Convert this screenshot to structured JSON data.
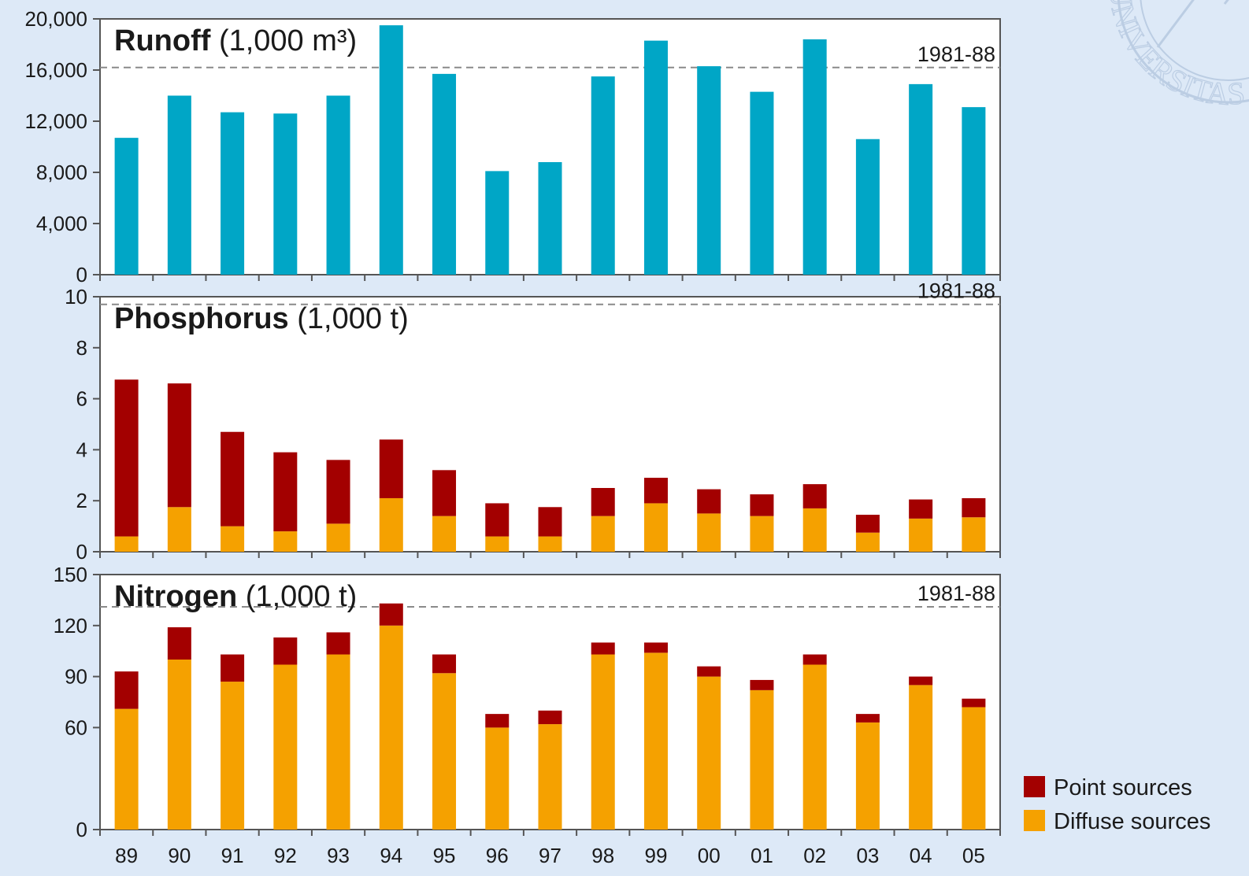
{
  "chart_data": [
    {
      "type": "bar",
      "title_bold": "Runoff",
      "title_rest": " (1,000 m³)",
      "categories": [
        "89",
        "90",
        "91",
        "92",
        "93",
        "94",
        "95",
        "96",
        "97",
        "98",
        "99",
        "00",
        "01",
        "02",
        "03",
        "04",
        "05"
      ],
      "values": [
        10700,
        14000,
        12700,
        12600,
        14000,
        19500,
        15700,
        8100,
        8800,
        15500,
        18300,
        16300,
        14300,
        18400,
        10600,
        14900,
        13100
      ],
      "ylim": [
        0,
        20000
      ],
      "yticks": [
        0,
        4000,
        8000,
        12000,
        16000,
        20000
      ],
      "ytick_labels": [
        "0",
        "4,000",
        "8,000",
        "12,000",
        "16,000",
        "20,000"
      ],
      "reference_line": {
        "label": "1981-88",
        "value": 16200
      },
      "color": "#00a6c6"
    },
    {
      "type": "bar",
      "stacked": true,
      "title_bold": "Phosphorus",
      "title_rest": " (1,000 t)",
      "categories": [
        "89",
        "90",
        "91",
        "92",
        "93",
        "94",
        "95",
        "96",
        "97",
        "98",
        "99",
        "00",
        "01",
        "02",
        "03",
        "04",
        "05"
      ],
      "series": [
        {
          "name": "Diffuse sources",
          "color": "#f5a100",
          "values": [
            0.6,
            1.75,
            1.0,
            0.8,
            1.1,
            2.1,
            1.4,
            0.6,
            0.6,
            1.4,
            1.9,
            1.5,
            1.4,
            1.7,
            0.75,
            1.3,
            1.35
          ]
        },
        {
          "name": "Point sources",
          "color": "#a30000",
          "values": [
            6.15,
            4.85,
            3.7,
            3.1,
            2.5,
            2.3,
            1.8,
            1.3,
            1.15,
            1.1,
            1.0,
            0.95,
            0.85,
            0.95,
            0.7,
            0.75,
            0.75
          ]
        }
      ],
      "ylim": [
        0,
        10
      ],
      "yticks": [
        0,
        2,
        4,
        6,
        8,
        10
      ],
      "ytick_labels": [
        "0",
        "2",
        "4",
        "6",
        "8",
        "10"
      ],
      "reference_line": {
        "label": "1981-88",
        "value": 9.7
      }
    },
    {
      "type": "bar",
      "stacked": true,
      "title_bold": "Nitrogen",
      "title_rest": " (1,000 t)",
      "categories": [
        "89",
        "90",
        "91",
        "92",
        "93",
        "94",
        "95",
        "96",
        "97",
        "98",
        "99",
        "00",
        "01",
        "02",
        "03",
        "04",
        "05"
      ],
      "series": [
        {
          "name": "Diffuse sources",
          "color": "#f5a100",
          "values": [
            71,
            100,
            87,
            97,
            103,
            120,
            92,
            60,
            62,
            103,
            104,
            90,
            82,
            97,
            63,
            85,
            72
          ]
        },
        {
          "name": "Point sources",
          "color": "#a30000",
          "values": [
            22,
            19,
            16,
            16,
            13,
            13,
            11,
            8,
            8,
            7,
            6,
            6,
            6,
            6,
            5,
            5,
            5
          ]
        }
      ],
      "ylim": [
        0,
        150
      ],
      "yticks": [
        0,
        60,
        90,
        120,
        150
      ],
      "ytick_labels": [
        "0",
        "60",
        "90",
        "120",
        "150"
      ],
      "reference_line": {
        "label": "1981-88",
        "value": 131
      }
    }
  ],
  "legend": {
    "placement": "bottom-right",
    "items": [
      {
        "label": "Point sources",
        "color": "#a30000"
      },
      {
        "label": "Diffuse sources",
        "color": "#f5a100"
      }
    ]
  },
  "watermark_text": "UNIVERSITAS"
}
